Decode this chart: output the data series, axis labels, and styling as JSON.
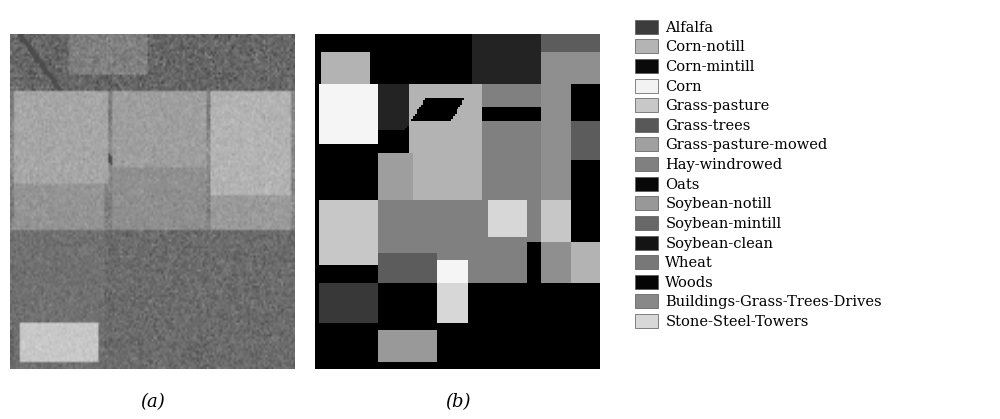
{
  "legend_entries": [
    {
      "label": "Alfalfa",
      "color": "#3c3c3c"
    },
    {
      "label": "Corn-notill",
      "color": "#b4b4b4"
    },
    {
      "label": "Corn-mintill",
      "color": "#0a0a0a"
    },
    {
      "label": "Corn",
      "color": "#f2f2f2"
    },
    {
      "label": "Grass-pasture",
      "color": "#c8c8c8"
    },
    {
      "label": "Grass-trees",
      "color": "#585858"
    },
    {
      "label": "Grass-pasture-mowed",
      "color": "#a0a0a0"
    },
    {
      "label": "Hay-windrowed",
      "color": "#808080"
    },
    {
      "label": "Oats",
      "color": "#080808"
    },
    {
      "label": "Soybean-notill",
      "color": "#989898"
    },
    {
      "label": "Soybean-mintill",
      "color": "#686868"
    },
    {
      "label": "Soybean-clean",
      "color": "#141414"
    },
    {
      "label": "Wheat",
      "color": "#787878"
    },
    {
      "label": "Woods",
      "color": "#050505"
    },
    {
      "label": "Buildings-Grass-Trees-Drives",
      "color": "#888888"
    },
    {
      "label": "Stone-Steel-Towers",
      "color": "#d8d8d8"
    }
  ],
  "caption_a": "(a)",
  "caption_b": "(b)",
  "caption_fontsize": 13,
  "legend_fontsize": 10.5,
  "background_color": "#ffffff"
}
